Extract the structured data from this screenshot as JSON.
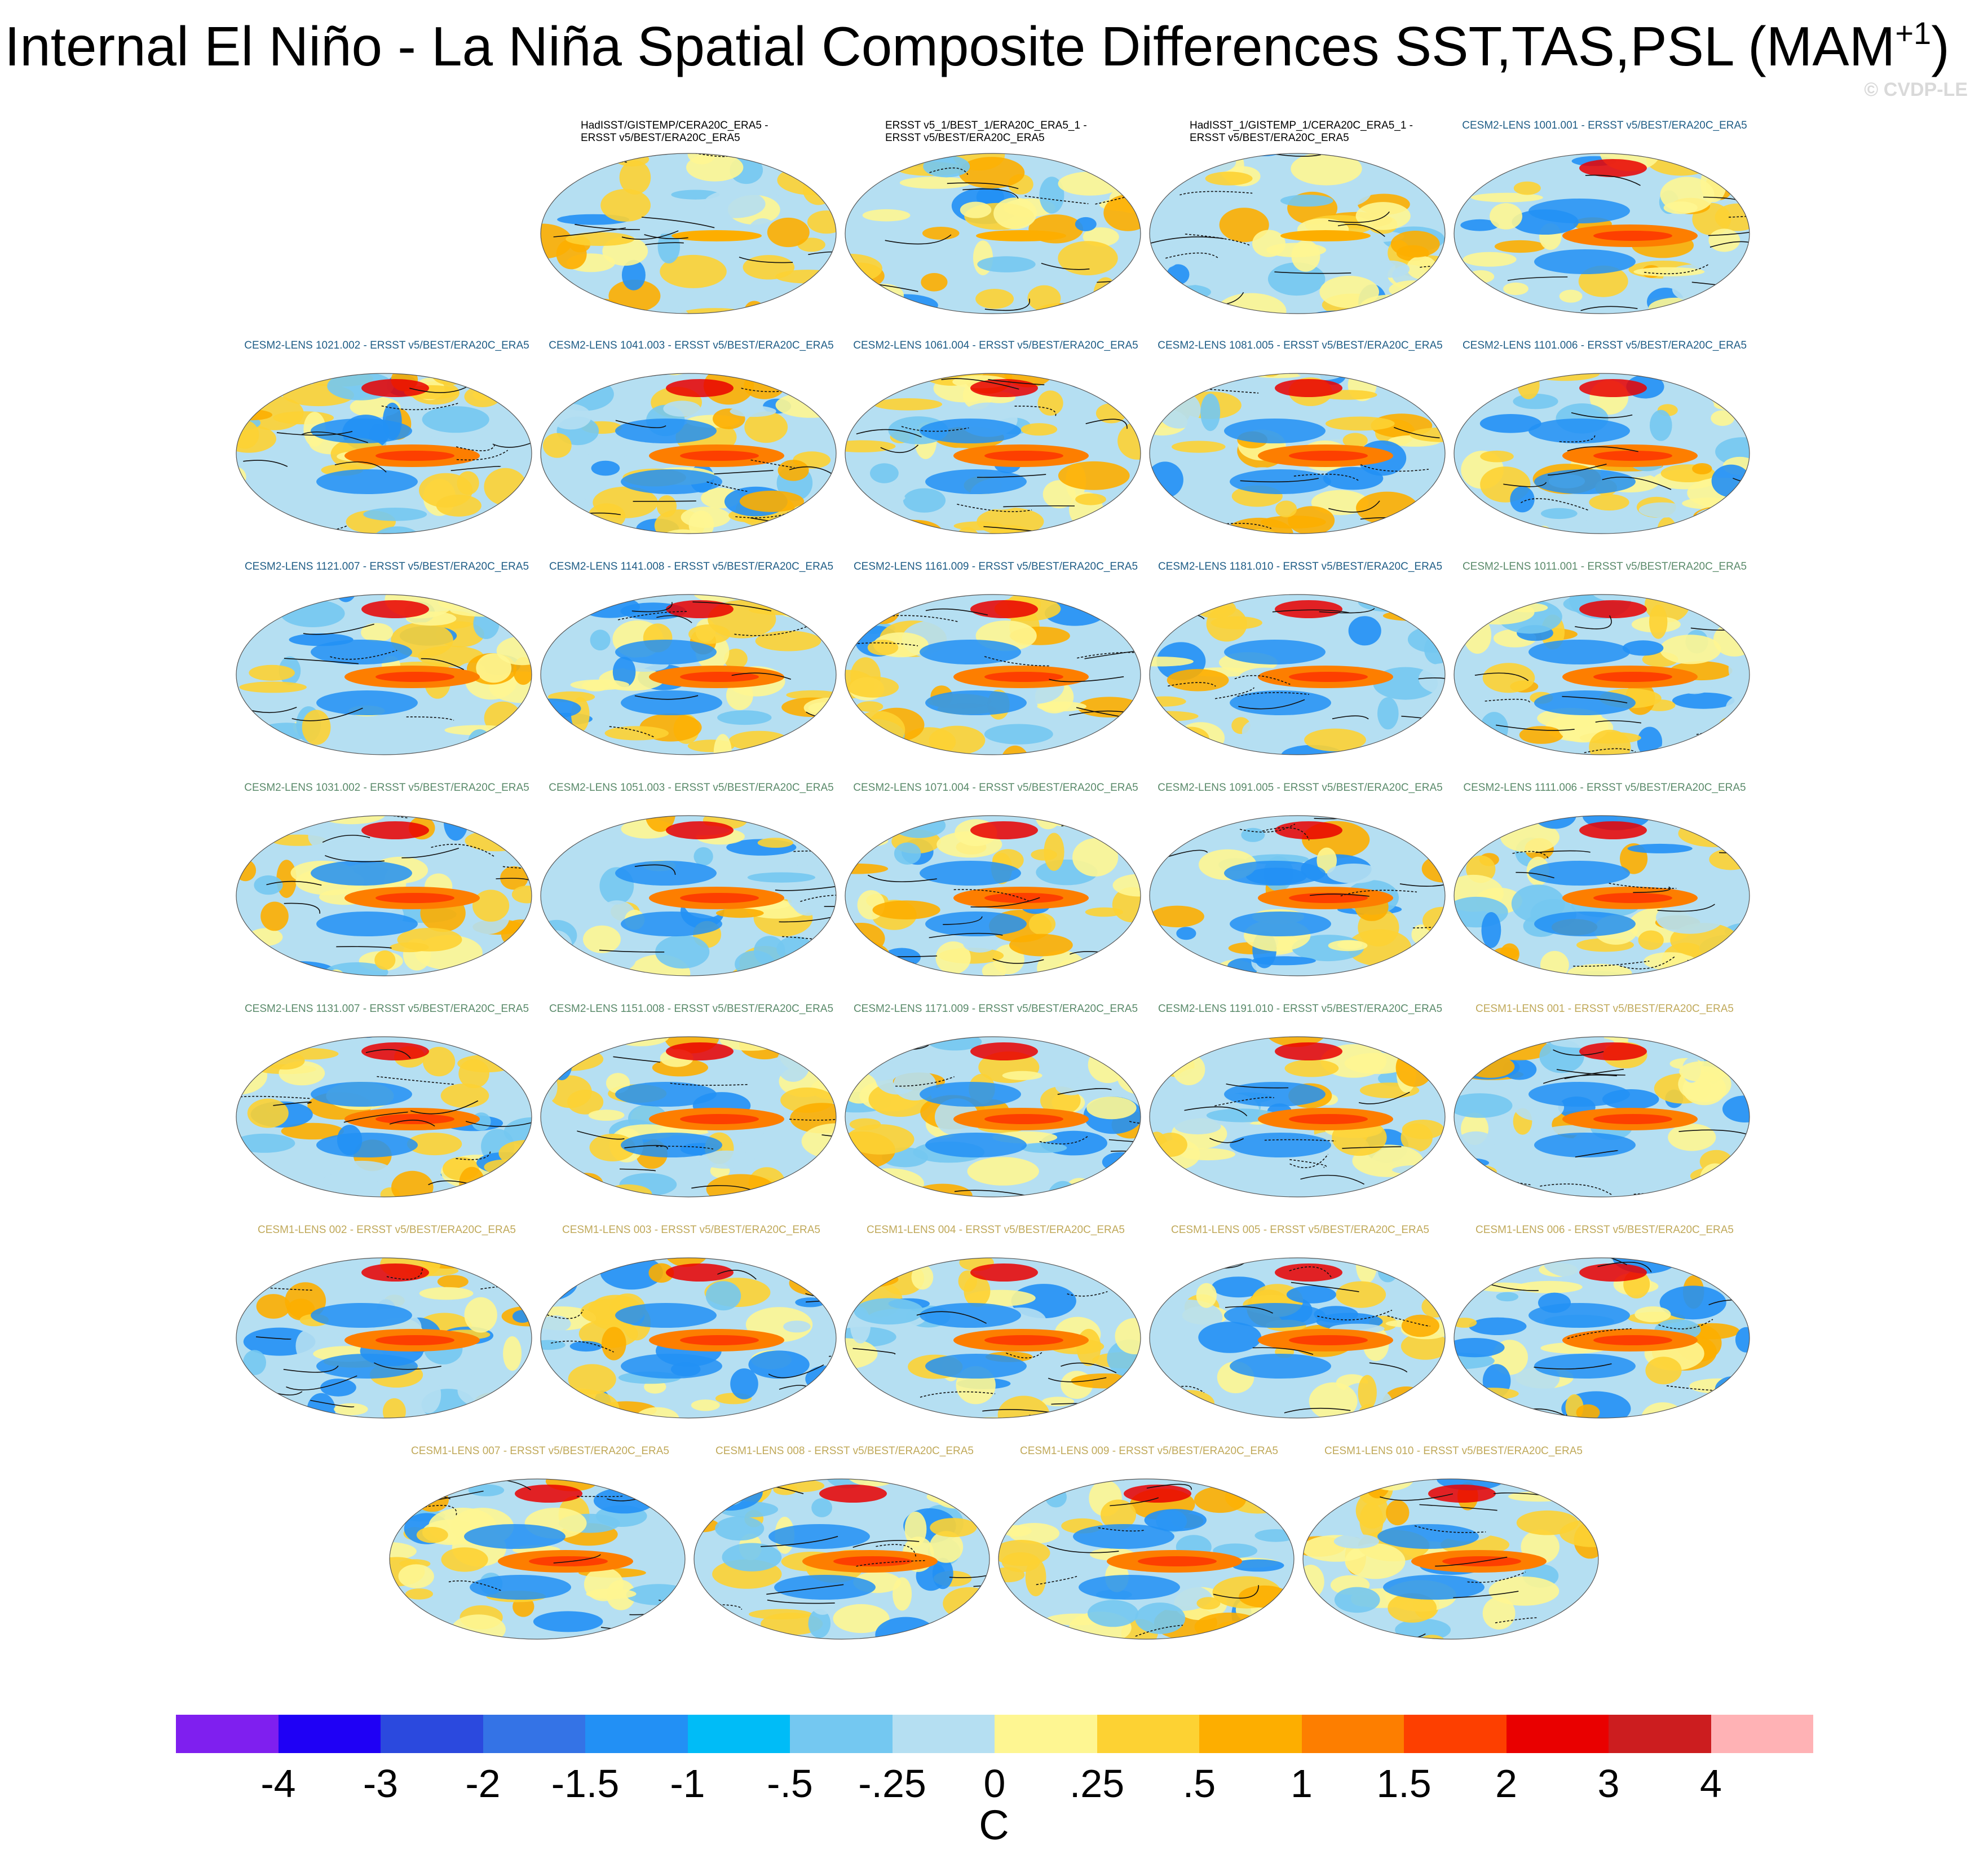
{
  "title": {
    "main": "Internal El Niño - La Niña Spatial Composite Differences SST,TAS,PSL (MAM",
    "superscript": "+1",
    "closing": ")"
  },
  "copyright": "© CVDP-LE",
  "colors": {
    "obs_label": "#000000",
    "cesm2_first": "#1f5d86",
    "cesm2_second": "#5a8a6a",
    "cesm1": "#c0a95a"
  },
  "panels": [
    {
      "label_lines": [
        "HadISST/GISTEMP/CERA20C_ERA5 -",
        "ERSST v5/BEST/ERA20C_ERA5"
      ],
      "group": "obs"
    },
    {
      "label_lines": [
        "ERSST v5_1/BEST_1/ERA20C_ERA5_1 -",
        "ERSST v5/BEST/ERA20C_ERA5"
      ],
      "group": "obs"
    },
    {
      "label_lines": [
        "HadISST_1/GISTEMP_1/CERA20C_ERA5_1 -",
        "ERSST v5/BEST/ERA20C_ERA5"
      ],
      "group": "obs"
    },
    {
      "label_lines": [
        "CESM2-LENS 1001.001 - ERSST v5/BEST/ERA20C_ERA5"
      ],
      "group": "cesm2_first"
    },
    {
      "label_lines": [
        "CESM2-LENS 1021.002 - ERSST v5/BEST/ERA20C_ERA5"
      ],
      "group": "cesm2_first"
    },
    {
      "label_lines": [
        "CESM2-LENS 1041.003 - ERSST v5/BEST/ERA20C_ERA5"
      ],
      "group": "cesm2_first"
    },
    {
      "label_lines": [
        "CESM2-LENS 1061.004 - ERSST v5/BEST/ERA20C_ERA5"
      ],
      "group": "cesm2_first"
    },
    {
      "label_lines": [
        "CESM2-LENS 1081.005 - ERSST v5/BEST/ERA20C_ERA5"
      ],
      "group": "cesm2_first"
    },
    {
      "label_lines": [
        "CESM2-LENS 1101.006 - ERSST v5/BEST/ERA20C_ERA5"
      ],
      "group": "cesm2_first"
    },
    {
      "label_lines": [
        "CESM2-LENS 1121.007 - ERSST v5/BEST/ERA20C_ERA5"
      ],
      "group": "cesm2_first"
    },
    {
      "label_lines": [
        "CESM2-LENS 1141.008 - ERSST v5/BEST/ERA20C_ERA5"
      ],
      "group": "cesm2_first"
    },
    {
      "label_lines": [
        "CESM2-LENS 1161.009 - ERSST v5/BEST/ERA20C_ERA5"
      ],
      "group": "cesm2_first"
    },
    {
      "label_lines": [
        "CESM2-LENS 1181.010 - ERSST v5/BEST/ERA20C_ERA5"
      ],
      "group": "cesm2_first"
    },
    {
      "label_lines": [
        "CESM2-LENS 1011.001 - ERSST v5/BEST/ERA20C_ERA5"
      ],
      "group": "cesm2_second"
    },
    {
      "label_lines": [
        "CESM2-LENS 1031.002 - ERSST v5/BEST/ERA20C_ERA5"
      ],
      "group": "cesm2_second"
    },
    {
      "label_lines": [
        "CESM2-LENS 1051.003 - ERSST v5/BEST/ERA20C_ERA5"
      ],
      "group": "cesm2_second"
    },
    {
      "label_lines": [
        "CESM2-LENS 1071.004 - ERSST v5/BEST/ERA20C_ERA5"
      ],
      "group": "cesm2_second"
    },
    {
      "label_lines": [
        "CESM2-LENS 1091.005 - ERSST v5/BEST/ERA20C_ERA5"
      ],
      "group": "cesm2_second"
    },
    {
      "label_lines": [
        "CESM2-LENS 1111.006 - ERSST v5/BEST/ERA20C_ERA5"
      ],
      "group": "cesm2_second"
    },
    {
      "label_lines": [
        "CESM2-LENS 1131.007 - ERSST v5/BEST/ERA20C_ERA5"
      ],
      "group": "cesm2_second"
    },
    {
      "label_lines": [
        "CESM2-LENS 1151.008 - ERSST v5/BEST/ERA20C_ERA5"
      ],
      "group": "cesm2_second"
    },
    {
      "label_lines": [
        "CESM2-LENS 1171.009 - ERSST v5/BEST/ERA20C_ERA5"
      ],
      "group": "cesm2_second"
    },
    {
      "label_lines": [
        "CESM2-LENS 1191.010 - ERSST v5/BEST/ERA20C_ERA5"
      ],
      "group": "cesm2_second"
    },
    {
      "label_lines": [
        "CESM1-LENS 001 - ERSST v5/BEST/ERA20C_ERA5"
      ],
      "group": "cesm1"
    },
    {
      "label_lines": [
        "CESM1-LENS 002 - ERSST v5/BEST/ERA20C_ERA5"
      ],
      "group": "cesm1"
    },
    {
      "label_lines": [
        "CESM1-LENS 003 - ERSST v5/BEST/ERA20C_ERA5"
      ],
      "group": "cesm1"
    },
    {
      "label_lines": [
        "CESM1-LENS 004 - ERSST v5/BEST/ERA20C_ERA5"
      ],
      "group": "cesm1"
    },
    {
      "label_lines": [
        "CESM1-LENS 005 - ERSST v5/BEST/ERA20C_ERA5"
      ],
      "group": "cesm1"
    },
    {
      "label_lines": [
        "CESM1-LENS 006 - ERSST v5/BEST/ERA20C_ERA5"
      ],
      "group": "cesm1"
    },
    {
      "label_lines": [
        "CESM1-LENS 007 - ERSST v5/BEST/ERA20C_ERA5"
      ],
      "group": "cesm1"
    },
    {
      "label_lines": [
        "CESM1-LENS 008 - ERSST v5/BEST/ERA20C_ERA5"
      ],
      "group": "cesm1"
    },
    {
      "label_lines": [
        "CESM1-LENS 009 - ERSST v5/BEST/ERA20C_ERA5"
      ],
      "group": "cesm1"
    },
    {
      "label_lines": [
        "CESM1-LENS 010 - ERSST v5/BEST/ERA20C_ERA5"
      ],
      "group": "cesm1"
    }
  ],
  "colorbar": {
    "colors": [
      "#7f1fef",
      "#1f00f5",
      "#2b49de",
      "#3473e6",
      "#2290f5",
      "#00bcf7",
      "#74c8f1",
      "#b5dff2",
      "#fef692",
      "#fdd233",
      "#fdae00",
      "#fd7e00",
      "#fd3f00",
      "#e90000",
      "#cc1d1f",
      "#ffb2b5"
    ],
    "tick_labels": [
      "-4",
      "-3",
      "-2",
      "-1.5",
      "-1",
      "-.5",
      "-.25",
      "0",
      ".25",
      ".5",
      "1",
      "1.5",
      "2",
      "3",
      "4"
    ],
    "units": "C"
  }
}
